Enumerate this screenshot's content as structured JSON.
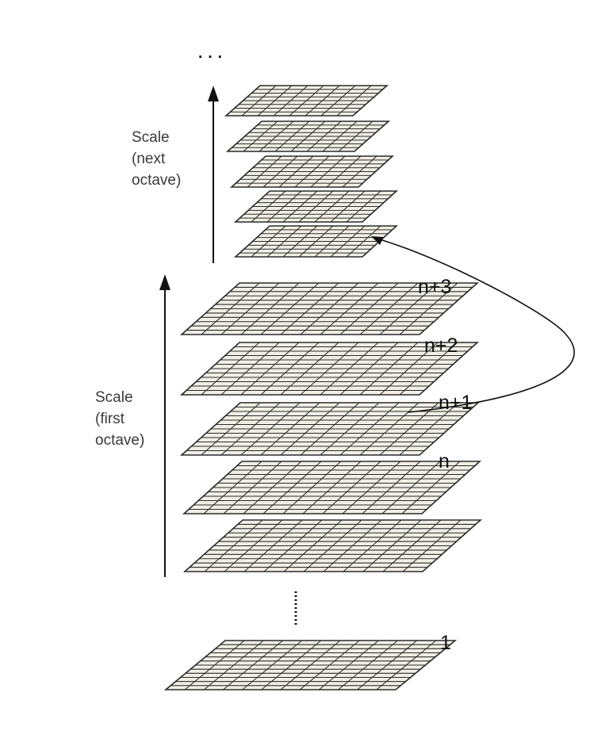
{
  "colors": {
    "grid_fill": "#f2f0e6",
    "grid_line": "#2b2b2b",
    "arrow": "#111111"
  },
  "top_ellipsis": "···",
  "labels": {
    "next_octave": [
      "Scale",
      "(next",
      "octave)"
    ],
    "first_octave": [
      "Scale",
      "(first",
      "octave)"
    ]
  },
  "level_labels": {
    "n_plus_3": "n+3",
    "n_plus_2": "n+2",
    "n_plus_1": "n+1",
    "n": "n",
    "one": "1"
  }
}
